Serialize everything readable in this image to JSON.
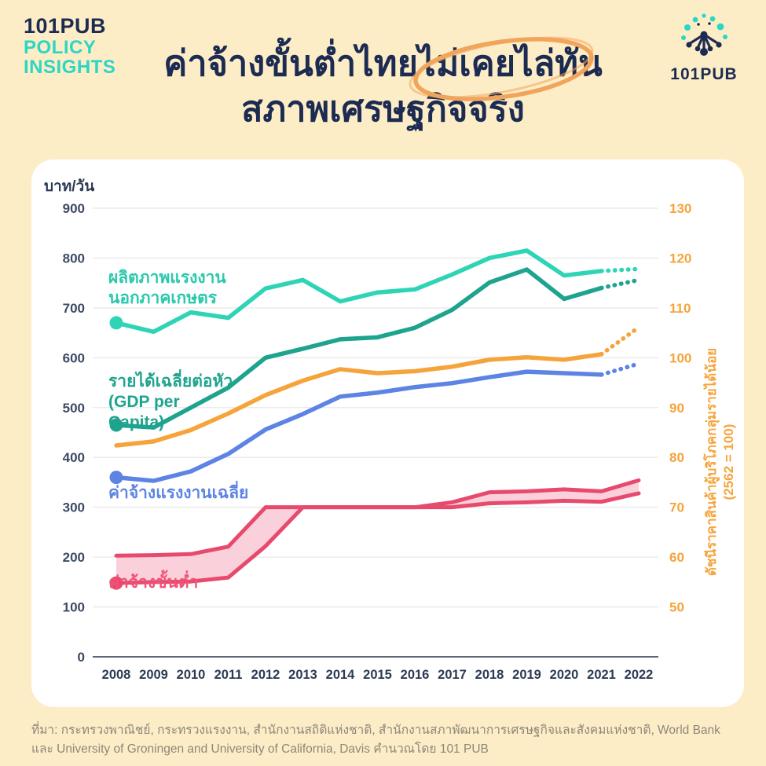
{
  "brand": {
    "line1": "101PUB",
    "line2": "POLICY",
    "line3": "INSIGHTS"
  },
  "logo": {
    "text": "101PUB"
  },
  "title": {
    "line1": "ค่าจ้างขั้นต่ำไทยไม่เคยไล่ทัน",
    "line2": "สภาพเศรษฐกิจจริง",
    "highlighted_phrase": "ไม่เคยไล่ทัน"
  },
  "palette": {
    "background": "#fdedc7",
    "card": "#ffffff",
    "navy": "#1c2b52",
    "teal_accent": "#2cd6c5",
    "productivity_teal": "#2fd4b6",
    "gdp_green": "#1ea48e",
    "cpi_orange": "#f5a43c",
    "wage_blue": "#5d84e4",
    "minwage_pink": "#e84a6e",
    "minwage_fill": "#f9ccd7",
    "annotation_orange": "#f1a55c",
    "gridline": "#ebebeb",
    "axis_line": "#5c6676",
    "source_gray": "#8d8779"
  },
  "chart_data": {
    "type": "line",
    "x": [
      2008,
      2009,
      2010,
      2011,
      2012,
      2013,
      2014,
      2015,
      2016,
      2017,
      2018,
      2019,
      2020,
      2021,
      2022
    ],
    "left_axis": {
      "label": "บาท/วัน",
      "min": 0,
      "max": 900,
      "tick_step": 100
    },
    "right_axis": {
      "label": "ดัชนีราคาสินค้าผู้บริโภคกลุ่มรายได้น้อย",
      "label2": "(2562 = 100)",
      "min": 40,
      "max": 130,
      "tick_step": 10
    },
    "grid": true,
    "projection_note": "last segment (2021-2022) drawn dotted for the four line series",
    "series": [
      {
        "name": "ผลิตภาพแรงงานนอกภาคเกษตร",
        "axis": "left",
        "color": "#2fd4b6",
        "start_dot": true,
        "dotted_last_segment": true,
        "values": [
          670,
          652,
          691,
          680,
          739,
          756,
          713,
          731,
          737,
          767,
          800,
          815,
          765,
          774,
          778
        ]
      },
      {
        "name": "รายได้เฉลี่ยต่อหัว (GDP per Capita)",
        "axis": "left",
        "color": "#1ea48e",
        "start_dot": true,
        "dotted_last_segment": true,
        "values": [
          465,
          460,
          500,
          540,
          600,
          618,
          637,
          641,
          660,
          696,
          751,
          777,
          718,
          740,
          756
        ]
      },
      {
        "name": "ดัชนีราคาสินค้าผู้บริโภคกลุ่มรายได้น้อย (2562 = 100)",
        "axis": "right",
        "color": "#f5a43c",
        "start_dot": false,
        "dotted_last_segment": true,
        "values": [
          82.4,
          83.2,
          85.5,
          88.8,
          92.5,
          95.4,
          97.7,
          96.9,
          97.3,
          98.2,
          99.6,
          100.1,
          99.6,
          100.7,
          106.1
        ]
      },
      {
        "name": "ค่าจ้างแรงงานเฉลี่ย",
        "axis": "left",
        "color": "#5d84e4",
        "start_dot": true,
        "dotted_last_segment": true,
        "values": [
          360,
          353,
          372,
          407,
          456,
          487,
          522,
          530,
          541,
          549,
          561,
          572,
          569,
          566,
          588
        ]
      },
      {
        "name": "ค่าจ้างขั้นต่ำ",
        "axis": "left",
        "color": "#e84a6e",
        "fill": "#f9ccd7",
        "type": "band",
        "start_dot": true,
        "dotted_last_segment": false,
        "lower": [
          148,
          150,
          151,
          159,
          222,
          300,
          300,
          300,
          300,
          300,
          308,
          310,
          313,
          311,
          328
        ],
        "upper": [
          203,
          204,
          206,
          221,
          300,
          300,
          300,
          300,
          300,
          310,
          330,
          332,
          336,
          332,
          354
        ]
      }
    ]
  },
  "labels": {
    "productivity_line1": "ผลิตภาพแรงงาน",
    "productivity_line2": "นอกภาคเกษตร",
    "gdp_line1": "รายได้เฉลี่ยต่อหัว",
    "gdp_line2": "(GDP per",
    "gdp_line3": "Capita)",
    "avg_wage": "ค่าจ้างแรงงานเฉลี่ย",
    "min_wage": "ค่าจ้างขั้นต่ำ"
  },
  "source": {
    "text": "ที่มา: กระทรวงพาณิชย์, กระทรวงแรงงาน, สำนักงานสถิติแห่งชาติ, สำนักงานสภาพัฒนาการเศรษฐกิจและสังคมแห่งชาติ, World Bank และ University of Groningen and University of California, Davis คำนวณโดย 101 PUB"
  }
}
